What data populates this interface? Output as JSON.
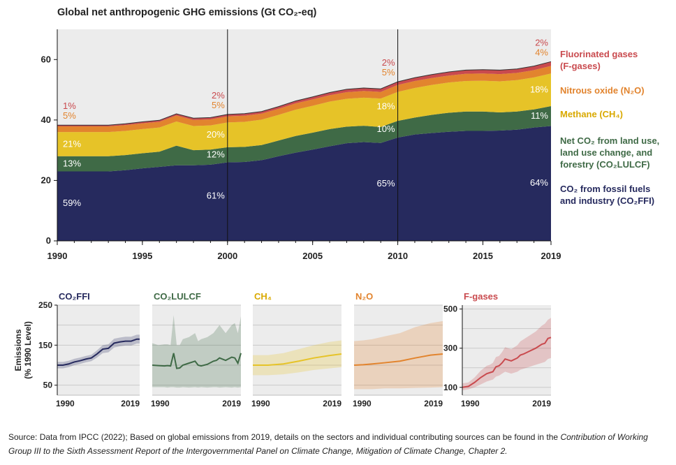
{
  "title": "Global net anthropogenic GHG emissions (Gt CO₂-eq)",
  "caption": {
    "text": "Source: Data from IPCC (2022); Based on global emissions from 2019, details on the sectors and individual contributing sources can be found in the ",
    "italic": "Contribution of Working Group III to the Sixth Assessment Report of the Intergovernmental Panel on Climate Change, Mitigation of Climate Change, Chapter 2."
  },
  "colors": {
    "CO2FFI": "#262a5e",
    "CO2LULCF": "#3f6a46",
    "CH4": "#e6c328",
    "N2O": "#e2842e",
    "Fgases": "#c94a4e",
    "panel_bg": "#ececec"
  },
  "legend": [
    {
      "key": "Fgases",
      "lines": [
        "Fluorinated gases",
        "(F-gases)"
      ]
    },
    {
      "key": "N2O",
      "lines": [
        "Nitrous oxide (N₂O)"
      ]
    },
    {
      "key": "CH4",
      "lines": [
        "Methane (CH₄)"
      ]
    },
    {
      "key": "CO2LULCF",
      "lines": [
        "Net CO₂ from land use,",
        "land use change, and",
        "forestry (CO₂LULCF)"
      ]
    },
    {
      "key": "CO2FFI",
      "lines": [
        "CO₂ from fossil fuels",
        "and industry (CO₂FFI)"
      ]
    }
  ],
  "chart_data": [
    {
      "type": "area",
      "title": "Global net anthropogenic GHG emissions (Gt CO₂-eq)",
      "stacked": true,
      "xlim": [
        1990,
        2019
      ],
      "ylim": [
        0,
        70
      ],
      "yticks": [
        0,
        20,
        40,
        60
      ],
      "xticks": [
        1990,
        1995,
        2000,
        2005,
        2010,
        2015,
        2019
      ],
      "vlines": [
        2000,
        2010
      ],
      "x": [
        1990,
        1991,
        1992,
        1993,
        1994,
        1995,
        1996,
        1997,
        1998,
        1999,
        2000,
        2001,
        2002,
        2003,
        2004,
        2005,
        2006,
        2007,
        2008,
        2009,
        2010,
        2011,
        2012,
        2013,
        2014,
        2015,
        2016,
        2017,
        2018,
        2019
      ],
      "series": [
        {
          "name": "CO₂ from fossil fuels and industry (CO₂FFI)",
          "key": "CO2FFI",
          "values": [
            23,
            23,
            23,
            23,
            23.4,
            24,
            24.5,
            25,
            25,
            25.2,
            26,
            26.1,
            26.7,
            28,
            29.2,
            30.2,
            31.3,
            32.3,
            32.7,
            32.4,
            34.2,
            35.2,
            35.7,
            36.1,
            36.4,
            36.4,
            36.5,
            36.8,
            37.5,
            38
          ]
        },
        {
          "name": "Net CO₂ from land use, land use change, and forestry (CO₂LULCF)",
          "key": "CO2LULCF",
          "values": [
            5,
            5,
            5,
            5,
            5,
            5,
            5,
            6.5,
            5,
            5,
            5,
            5,
            5,
            5.2,
            5.5,
            5.6,
            5.7,
            5.5,
            5.4,
            5.3,
            5.5,
            5.6,
            6,
            6.3,
            6.4,
            6.4,
            6,
            6,
            6,
            6.6
          ]
        },
        {
          "name": "Methane (CH₄)",
          "key": "CH4",
          "values": [
            8,
            8,
            8,
            8,
            8,
            8,
            8,
            8,
            8,
            8,
            8.2,
            8.3,
            8.4,
            8.5,
            8.7,
            8.9,
            9.1,
            9.2,
            9.3,
            9.4,
            9.6,
            9.8,
            9.9,
            10,
            10.1,
            10.2,
            10.3,
            10.4,
            10.6,
            10.8
          ]
        },
        {
          "name": "Nitrous oxide (N₂O)",
          "key": "N2O",
          "values": [
            1.9,
            1.9,
            1.9,
            1.9,
            1.9,
            1.9,
            1.9,
            2,
            2,
            2,
            2,
            2,
            2,
            2,
            2.1,
            2.1,
            2.1,
            2.2,
            2.2,
            2.2,
            2.3,
            2.3,
            2.3,
            2.3,
            2.4,
            2.4,
            2.4,
            2.4,
            2.4,
            2.5
          ]
        },
        {
          "name": "Fluorinated gases (F-gases)",
          "key": "Fgases",
          "values": [
            0.4,
            0.4,
            0.4,
            0.4,
            0.45,
            0.5,
            0.5,
            0.55,
            0.6,
            0.6,
            0.65,
            0.7,
            0.7,
            0.75,
            0.8,
            0.85,
            0.9,
            0.95,
            1,
            1,
            1.05,
            1.1,
            1.15,
            1.2,
            1.2,
            1.25,
            1.3,
            1.3,
            1.35,
            1.4
          ]
        }
      ],
      "annotations": [
        {
          "year": 1990,
          "CO2FFI": "59%",
          "CO2LULCF": "13%",
          "CH4": "21%",
          "N2O": "5%",
          "Fgases": "1%"
        },
        {
          "year": 2000,
          "CO2FFI": "61%",
          "CO2LULCF": "12%",
          "CH4": "20%",
          "N2O": "5%",
          "Fgases": "2%"
        },
        {
          "year": 2010,
          "CO2FFI": "65%",
          "CO2LULCF": "10%",
          "CH4": "18%",
          "N2O": "5%",
          "Fgases": "2%"
        },
        {
          "year": 2019,
          "CO2FFI": "64%",
          "CO2LULCF": "11%",
          "CH4": "18%",
          "N2O": "4%",
          "Fgases": "2%"
        }
      ]
    },
    {
      "type": "line",
      "title": "CO₂FFI",
      "key": "CO2FFI",
      "ylabel": "Emissions (% 1990 Level)",
      "ylim": [
        25,
        250
      ],
      "yticks": [
        50,
        150,
        250
      ],
      "xticks": [
        1990,
        2019
      ],
      "x": [
        1990,
        1992,
        1994,
        1996,
        1998,
        2000,
        2002,
        2004,
        2006,
        2008,
        2010,
        2012,
        2014,
        2016,
        2018,
        2019
      ],
      "values": [
        100,
        100,
        103,
        108,
        111,
        115,
        118,
        128,
        140,
        142,
        155,
        158,
        160,
        160,
        165,
        165
      ],
      "lower": [
        92,
        92,
        95,
        100,
        103,
        107,
        110,
        119,
        130,
        132,
        144,
        147,
        149,
        149,
        154,
        154
      ],
      "upper": [
        108,
        108,
        111,
        116,
        119,
        123,
        126,
        137,
        150,
        152,
        166,
        169,
        171,
        171,
        176,
        176
      ]
    },
    {
      "type": "line",
      "title": "CO₂LULCF",
      "key": "CO2LULCF",
      "ylim": [
        25,
        250
      ],
      "xticks": [
        1990,
        2019
      ],
      "x": [
        1990,
        1992,
        1994,
        1995,
        1996,
        1997,
        1998,
        1999,
        2000,
        2002,
        2004,
        2005,
        2006,
        2008,
        2010,
        2011,
        2012,
        2014,
        2016,
        2017,
        2018,
        2019
      ],
      "values": [
        100,
        99,
        98,
        99,
        98,
        130,
        92,
        93,
        100,
        105,
        110,
        100,
        98,
        102,
        110,
        112,
        118,
        112,
        120,
        118,
        105,
        130
      ],
      "lower": [
        45,
        45,
        45,
        44,
        45,
        45,
        44,
        44,
        45,
        44,
        45,
        44,
        45,
        44,
        45,
        45,
        44,
        45,
        44,
        45,
        44,
        45
      ],
      "upper": [
        155,
        150,
        152,
        152,
        150,
        225,
        150,
        150,
        165,
        170,
        180,
        160,
        165,
        170,
        180,
        190,
        200,
        180,
        200,
        205,
        180,
        222
      ]
    },
    {
      "type": "line",
      "title": "CH₄",
      "key": "CH4",
      "ylim": [
        25,
        250
      ],
      "xticks": [
        1990,
        2019
      ],
      "x": [
        1990,
        1995,
        2000,
        2005,
        2010,
        2015,
        2019
      ],
      "values": [
        100,
        100,
        103,
        110,
        118,
        124,
        128
      ],
      "lower": [
        75,
        75,
        77,
        82,
        88,
        92,
        95
      ],
      "upper": [
        125,
        125,
        130,
        140,
        150,
        158,
        162
      ]
    },
    {
      "type": "line",
      "title": "N₂O",
      "key": "N2O",
      "ylim": [
        25,
        250
      ],
      "xticks": [
        1990,
        2019
      ],
      "x": [
        1990,
        1993,
        1996,
        2000,
        2005,
        2010,
        2015,
        2019
      ],
      "values": [
        100,
        101,
        103,
        106,
        110,
        118,
        125,
        128
      ],
      "lower": [
        40,
        40,
        40,
        42,
        42,
        43,
        44,
        45
      ],
      "upper": [
        160,
        162,
        165,
        172,
        180,
        195,
        205,
        210
      ]
    },
    {
      "type": "line",
      "title": "F-gases",
      "key": "Fgases",
      "ylim": [
        60,
        520
      ],
      "yticks": [
        100,
        300,
        500
      ],
      "xticks": [
        1990,
        2019
      ],
      "x": [
        1990,
        1992,
        1994,
        1996,
        1998,
        1999,
        2000,
        2001,
        2002,
        2003,
        2004,
        2005,
        2006,
        2008,
        2009,
        2010,
        2012,
        2014,
        2015,
        2016,
        2017,
        2018,
        2019
      ],
      "values": [
        100,
        105,
        125,
        150,
        170,
        175,
        180,
        205,
        210,
        225,
        245,
        240,
        235,
        250,
        265,
        270,
        285,
        300,
        310,
        320,
        325,
        350,
        355
      ],
      "lower": [
        85,
        90,
        100,
        115,
        130,
        135,
        140,
        155,
        160,
        170,
        180,
        175,
        170,
        180,
        190,
        195,
        205,
        215,
        220,
        225,
        230,
        245,
        250
      ],
      "upper": [
        120,
        125,
        150,
        185,
        210,
        215,
        225,
        255,
        260,
        280,
        305,
        300,
        295,
        315,
        335,
        345,
        365,
        385,
        400,
        415,
        425,
        445,
        455
      ]
    }
  ]
}
